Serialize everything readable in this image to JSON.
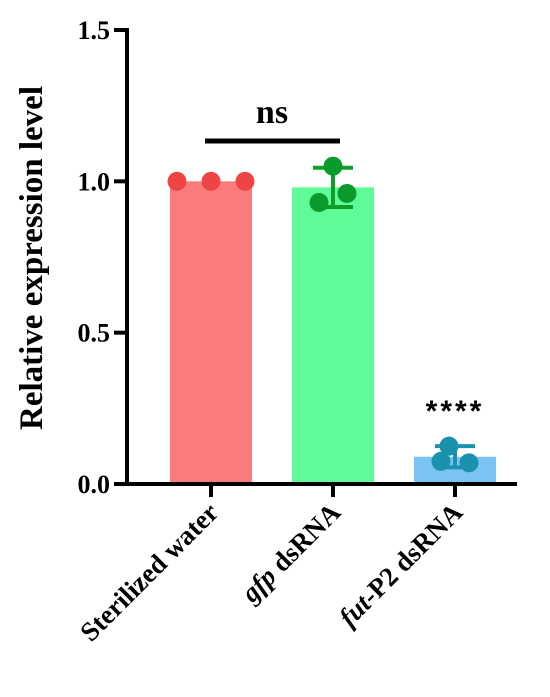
{
  "chart_data": {
    "type": "bar",
    "ylabel": "Relative expression level",
    "ylim": [
      0,
      1.5
    ],
    "yticks": [
      "0.0",
      "0.5",
      "1.0",
      "1.5"
    ],
    "ytick_values": [
      0,
      0.5,
      1.0,
      1.5
    ],
    "categories": [
      {
        "prefix": "",
        "italic": "",
        "rest": "Sterilized water"
      },
      {
        "prefix": "",
        "italic": "gfp",
        "rest": " dsRNA"
      },
      {
        "prefix": "",
        "italic": "fut",
        "rest": "-P2 dsRNA"
      }
    ],
    "values": [
      1.0,
      0.98,
      0.09
    ],
    "error": [
      0,
      0.065,
      0.035
    ],
    "points": [
      [
        1.0,
        1.0,
        1.0
      ],
      [
        1.05,
        0.93,
        0.96
      ],
      [
        0.125,
        0.075,
        0.07
      ]
    ],
    "bar_colors": [
      "#fa7b7b",
      "#5ffb96",
      "#79c3f5"
    ],
    "point_colors": [
      "#ee4444",
      "#0b9a2c",
      "#1b92ad"
    ],
    "error_colors": [
      "#ee4444",
      "#0e9e2a",
      "#1b92ad"
    ],
    "annotations": {
      "ns": "ns",
      "significance_fut": "****"
    }
  }
}
